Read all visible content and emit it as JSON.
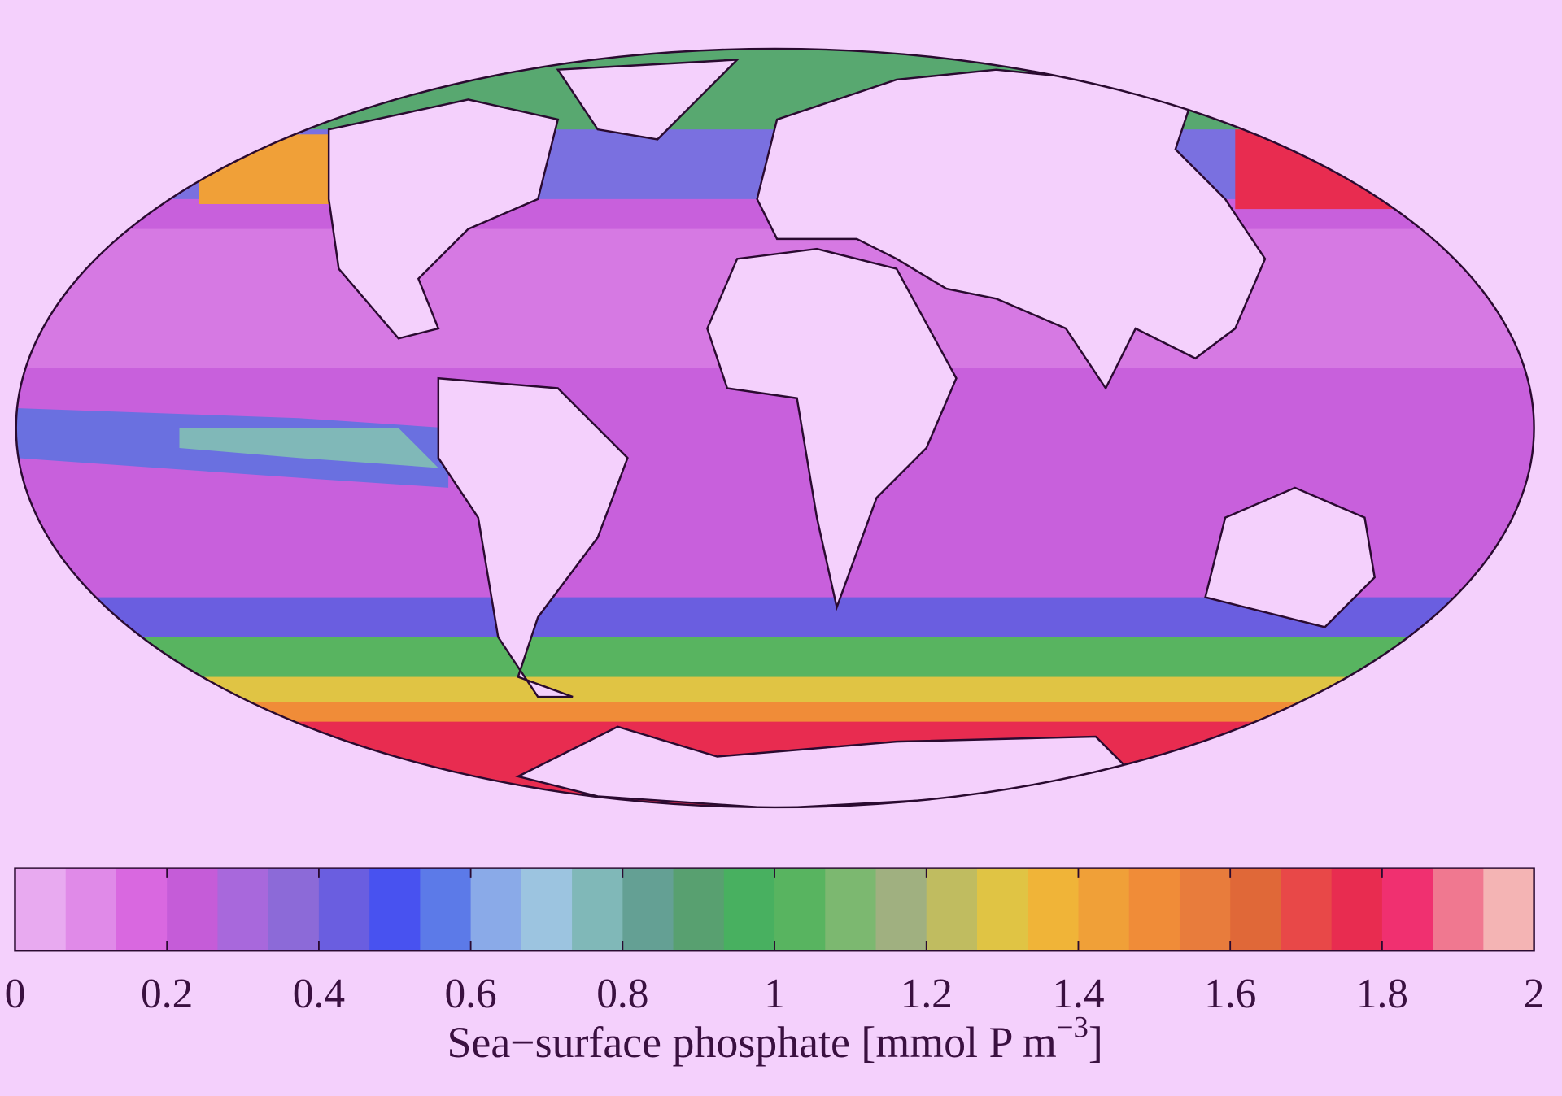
{
  "colorbar": {
    "label": "Sea−surface phosphate [mmol P m",
    "label_superscript": "−3",
    "label_suffix": "]",
    "lim": [
      0,
      2
    ],
    "ticks": [
      0,
      0.2,
      0.4,
      0.6,
      0.8,
      1,
      1.2,
      1.4,
      1.6,
      1.8,
      2
    ],
    "colors": [
      "#e8aaf0",
      "#e08ae8",
      "#d968e0",
      "#c55cd8",
      "#a868dc",
      "#8c6ad8",
      "#6a5ee0",
      "#4852f0",
      "#5c7ae8",
      "#8aaae8",
      "#9cc4e0",
      "#80b8b8",
      "#64a094",
      "#58a070",
      "#48b060",
      "#58b460",
      "#7cb870",
      "#a0b080",
      "#c0bc60",
      "#e0c444",
      "#f0b438",
      "#f0a038",
      "#f08c38",
      "#e87c3c",
      "#e06838",
      "#e84848",
      "#e82c50",
      "#f03070",
      "#f07890",
      "#f4b4b4"
    ]
  }
}
